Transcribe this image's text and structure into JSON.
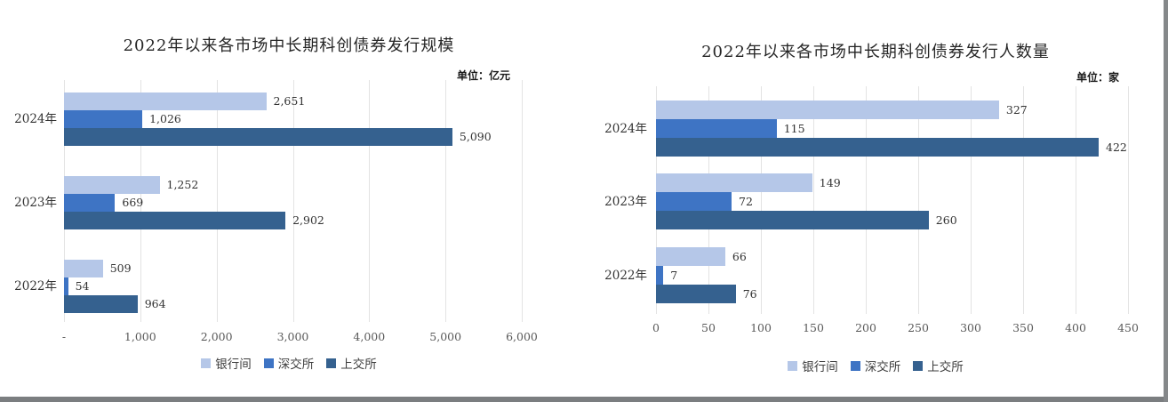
{
  "window": {
    "background": "#ffffff",
    "bottom_edge_color": "#7b7e80",
    "right_edge_color": "#85888a"
  },
  "chart_data": [
    {
      "type": "bar",
      "orientation": "horizontal",
      "title": "2022年以来各市场中长期科创债券发行规模",
      "unit_label": "单位：亿元",
      "categories": [
        "2024年",
        "2023年",
        "2022年"
      ],
      "series": [
        {
          "name": "银行间",
          "color": "#b5c7e8",
          "values": [
            2651,
            1252,
            509
          ],
          "labels": [
            "2,651",
            "1,252",
            "509"
          ]
        },
        {
          "name": "深交所",
          "color": "#3e74c4",
          "values": [
            1026,
            669,
            54
          ],
          "labels": [
            "1,026",
            "669",
            "54"
          ]
        },
        {
          "name": "上交所",
          "color": "#35618f",
          "values": [
            5090,
            2902,
            964
          ],
          "labels": [
            "5,090",
            "2,902",
            "964"
          ]
        }
      ],
      "xlim": [
        0,
        6000
      ],
      "x_ticks": [
        {
          "value": 0,
          "label": "-"
        },
        {
          "value": 1000,
          "label": "1,000"
        },
        {
          "value": 2000,
          "label": "2,000"
        },
        {
          "value": 3000,
          "label": "3,000"
        },
        {
          "value": 4000,
          "label": "4,000"
        },
        {
          "value": 5000,
          "label": "5,000"
        },
        {
          "value": 6000,
          "label": "6,000"
        }
      ],
      "grid": true,
      "legend_position": "bottom"
    },
    {
      "type": "bar",
      "orientation": "horizontal",
      "title": "2022年以来各市场中长期科创债券发行人数量",
      "unit_label": "单位：家",
      "categories": [
        "2024年",
        "2023年",
        "2022年"
      ],
      "series": [
        {
          "name": "银行间",
          "color": "#b5c7e8",
          "values": [
            327,
            149,
            66
          ],
          "labels": [
            "327",
            "149",
            "66"
          ]
        },
        {
          "name": "深交所",
          "color": "#3e74c4",
          "values": [
            115,
            72,
            7
          ],
          "labels": [
            "115",
            "72",
            "7"
          ]
        },
        {
          "name": "上交所",
          "color": "#35618f",
          "values": [
            422,
            260,
            76
          ],
          "labels": [
            "422",
            "260",
            "76"
          ]
        }
      ],
      "xlim": [
        0,
        450
      ],
      "x_ticks": [
        {
          "value": 0,
          "label": "0"
        },
        {
          "value": 50,
          "label": "50"
        },
        {
          "value": 100,
          "label": "100"
        },
        {
          "value": 150,
          "label": "150"
        },
        {
          "value": 200,
          "label": "200"
        },
        {
          "value": 250,
          "label": "250"
        },
        {
          "value": 300,
          "label": "300"
        },
        {
          "value": 350,
          "label": "350"
        },
        {
          "value": 400,
          "label": "400"
        },
        {
          "value": 450,
          "label": "450"
        }
      ],
      "grid": true,
      "legend_position": "bottom"
    }
  ]
}
